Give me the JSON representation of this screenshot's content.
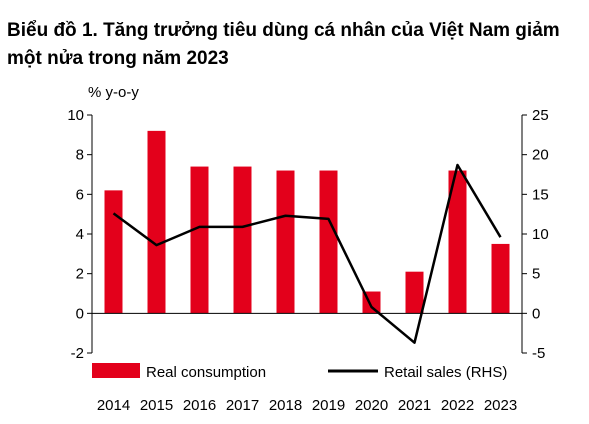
{
  "title": "Biểu đồ 1. Tăng trưởng tiêu dùng cá nhân của Việt Nam giảm một nửa trong năm 2023",
  "chart_data": {
    "type": "bar",
    "title": "Biểu đồ 1. Tăng trưởng tiêu dùng cá nhân của Việt Nam giảm một nửa trong năm 2023",
    "ylabel": "% y-o-y",
    "categories": [
      "2014",
      "2015",
      "2016",
      "2017",
      "2018",
      "2019",
      "2020",
      "2021",
      "2022",
      "2023"
    ],
    "ylim": [
      -2,
      10
    ],
    "yticks": [
      -2,
      0,
      2,
      4,
      6,
      8,
      10
    ],
    "y2lim": [
      -5,
      25
    ],
    "y2ticks": [
      -5,
      0,
      5,
      10,
      15,
      20,
      25
    ],
    "series": [
      {
        "name": "Real consumption",
        "type": "bar",
        "axis": "left",
        "color": "#e3001b",
        "values": [
          6.2,
          9.2,
          7.4,
          7.4,
          7.2,
          7.2,
          1.1,
          2.1,
          7.2,
          3.5
        ]
      },
      {
        "name": "Retail sales (RHS)",
        "type": "line",
        "axis": "right",
        "color": "#000000",
        "values": [
          12.6,
          8.6,
          10.9,
          10.9,
          12.3,
          11.9,
          0.8,
          -3.7,
          18.7,
          9.6
        ]
      }
    ],
    "grid": false,
    "legend": "bottom"
  }
}
